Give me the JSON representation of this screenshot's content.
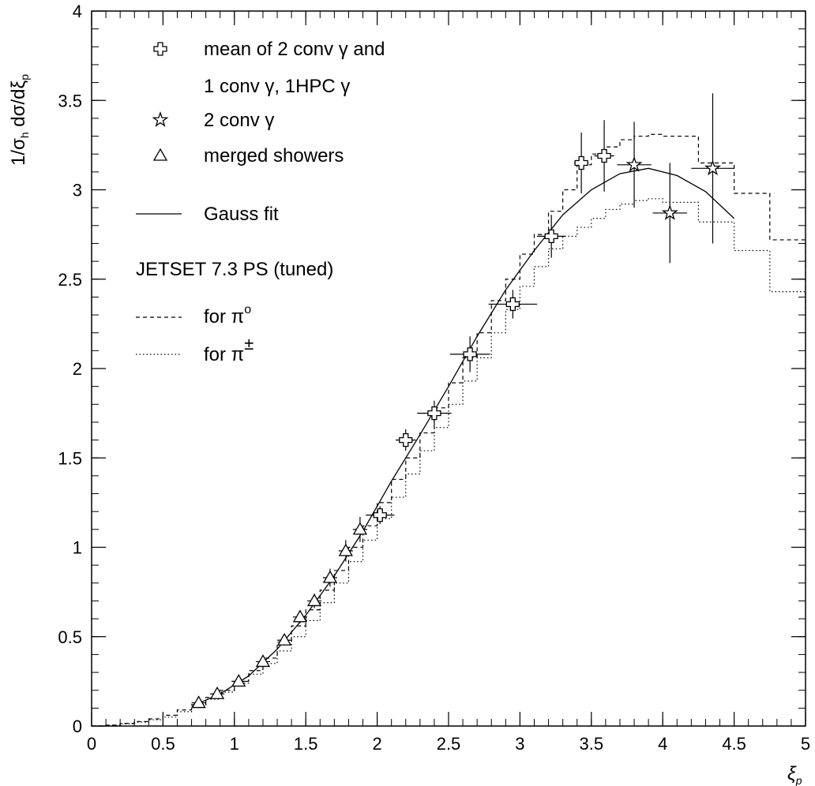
{
  "chart_data": {
    "type": "scatter",
    "title": "",
    "xlabel": "ξ",
    "xlabel_sub": "p",
    "ylabel": "1/σ",
    "ylabel_sub": "h",
    "ylabel_rest": " dσ/dξ",
    "ylabel_sub2": "p",
    "xlim": [
      0,
      5
    ],
    "ylim": [
      0,
      4
    ],
    "x_ticks": [
      {
        "value": 0,
        "label": "0"
      },
      {
        "value": 0.5,
        "label": "0.5"
      },
      {
        "value": 1,
        "label": "1"
      },
      {
        "value": 1.5,
        "label": "1.5"
      },
      {
        "value": 2,
        "label": "2"
      },
      {
        "value": 2.5,
        "label": "2.5"
      },
      {
        "value": 3,
        "label": "3"
      },
      {
        "value": 3.5,
        "label": "3.5"
      },
      {
        "value": 4,
        "label": "4"
      },
      {
        "value": 4.5,
        "label": "4.5"
      },
      {
        "value": 5,
        "label": "5"
      }
    ],
    "y_ticks": [
      {
        "value": 0,
        "label": "0"
      },
      {
        "value": 0.5,
        "label": "0.5"
      },
      {
        "value": 1,
        "label": "1"
      },
      {
        "value": 1.5,
        "label": "1.5"
      },
      {
        "value": 2,
        "label": "2"
      },
      {
        "value": 2.5,
        "label": "2.5"
      },
      {
        "value": 3,
        "label": "3"
      },
      {
        "value": 3.5,
        "label": "3.5"
      },
      {
        "value": 4,
        "label": "4"
      }
    ],
    "grid": false,
    "legend_position": "top-left",
    "legend": {
      "cross_line1": "mean of 2 conv γ and",
      "cross_line2": "1 conv γ, 1HPC γ",
      "star": "2 conv γ",
      "triangle": "merged showers",
      "fit": "Gauss fit",
      "jetset": "JETSET 7.3 PS (tuned)",
      "dashed_prefix": "for π",
      "dashed_sup": "o",
      "dotted_prefix": "for π",
      "dotted_sup": "±"
    },
    "series": [
      {
        "name": "mean of 2 conv γ and 1 conv γ, 1HPC γ",
        "marker": "cross",
        "points": [
          {
            "x": 2.02,
            "y": 1.18,
            "xerr": 0.1,
            "yerr": 0.05
          },
          {
            "x": 2.2,
            "y": 1.6,
            "xerr": 0.07,
            "yerr": 0.06
          },
          {
            "x": 2.4,
            "y": 1.75,
            "xerr": 0.12,
            "yerr": 0.07
          },
          {
            "x": 2.65,
            "y": 2.08,
            "xerr": 0.14,
            "yerr": 0.1
          },
          {
            "x": 2.95,
            "y": 2.36,
            "xerr": 0.17,
            "yerr": 0.08
          },
          {
            "x": 3.22,
            "y": 2.74,
            "xerr": 0.1,
            "yerr": 0.12
          },
          {
            "x": 3.43,
            "y": 3.15,
            "xerr": 0.05,
            "yerr": 0.17
          },
          {
            "x": 3.59,
            "y": 3.19,
            "xerr": 0.07,
            "yerr": 0.2
          }
        ]
      },
      {
        "name": "2 conv γ",
        "marker": "star",
        "points": [
          {
            "x": 3.8,
            "y": 3.14,
            "xerr": 0.12,
            "yerr": 0.24
          },
          {
            "x": 4.05,
            "y": 2.87,
            "xerr": 0.12,
            "yerr": 0.28
          },
          {
            "x": 4.35,
            "y": 3.12,
            "xerr": 0.15,
            "yerr": 0.42
          }
        ]
      },
      {
        "name": "merged showers",
        "marker": "triangle",
        "points": [
          {
            "x": 0.75,
            "y": 0.13,
            "xerr": 0.05,
            "yerr": 0.015
          },
          {
            "x": 0.88,
            "y": 0.18,
            "xerr": 0.05,
            "yerr": 0.02
          },
          {
            "x": 1.03,
            "y": 0.25,
            "xerr": 0.05,
            "yerr": 0.025
          },
          {
            "x": 1.2,
            "y": 0.36,
            "xerr": 0.05,
            "yerr": 0.03
          },
          {
            "x": 1.35,
            "y": 0.48,
            "xerr": 0.05,
            "yerr": 0.03
          },
          {
            "x": 1.46,
            "y": 0.61,
            "xerr": 0.05,
            "yerr": 0.035
          },
          {
            "x": 1.56,
            "y": 0.7,
            "xerr": 0.05,
            "yerr": 0.04
          },
          {
            "x": 1.67,
            "y": 0.83,
            "xerr": 0.05,
            "yerr": 0.05
          },
          {
            "x": 1.78,
            "y": 0.98,
            "xerr": 0.05,
            "yerr": 0.06
          },
          {
            "x": 1.88,
            "y": 1.1,
            "xerr": 0.05,
            "yerr": 0.07
          }
        ]
      },
      {
        "name": "Gauss fit",
        "type": "line",
        "style": "solid",
        "points": [
          [
            0.7,
            0.11
          ],
          [
            0.9,
            0.18
          ],
          [
            1.1,
            0.28
          ],
          [
            1.3,
            0.43
          ],
          [
            1.5,
            0.62
          ],
          [
            1.7,
            0.84
          ],
          [
            1.9,
            1.09
          ],
          [
            2.1,
            1.37
          ],
          [
            2.3,
            1.63
          ],
          [
            2.5,
            1.9
          ],
          [
            2.7,
            2.18
          ],
          [
            2.9,
            2.44
          ],
          [
            3.1,
            2.66
          ],
          [
            3.3,
            2.86
          ],
          [
            3.5,
            3.0
          ],
          [
            3.7,
            3.09
          ],
          [
            3.9,
            3.12
          ],
          [
            4.1,
            3.08
          ],
          [
            4.3,
            2.99
          ],
          [
            4.5,
            2.84
          ]
        ]
      },
      {
        "name": "for π o",
        "type": "step",
        "style": "dashed",
        "edges": [
          0.0,
          0.1,
          0.2,
          0.3,
          0.4,
          0.5,
          0.6,
          0.7,
          0.8,
          0.9,
          1.0,
          1.1,
          1.2,
          1.3,
          1.4,
          1.5,
          1.6,
          1.7,
          1.8,
          1.9,
          2.0,
          2.1,
          2.2,
          2.3,
          2.4,
          2.5,
          2.6,
          2.7,
          2.8,
          2.9,
          3.0,
          3.1,
          3.2,
          3.3,
          3.4,
          3.5,
          3.6,
          3.7,
          3.8,
          3.9,
          4.0,
          4.25,
          4.5,
          4.75,
          5.0
        ],
        "values": [
          0.0,
          0.005,
          0.015,
          0.025,
          0.04,
          0.06,
          0.09,
          0.12,
          0.16,
          0.2,
          0.25,
          0.31,
          0.38,
          0.47,
          0.56,
          0.65,
          0.76,
          0.87,
          1.0,
          1.12,
          1.25,
          1.38,
          1.5,
          1.64,
          1.78,
          1.92,
          2.06,
          2.2,
          2.38,
          2.5,
          2.64,
          2.75,
          2.88,
          3.0,
          3.14,
          3.2,
          3.24,
          3.28,
          3.3,
          3.31,
          3.3,
          3.15,
          2.98,
          2.72,
          2.3
        ]
      },
      {
        "name": "for π ±",
        "type": "step",
        "style": "dotted",
        "edges": [
          0.0,
          0.1,
          0.2,
          0.3,
          0.4,
          0.5,
          0.6,
          0.7,
          0.8,
          0.9,
          1.0,
          1.1,
          1.2,
          1.3,
          1.4,
          1.5,
          1.6,
          1.7,
          1.8,
          1.9,
          2.0,
          2.1,
          2.2,
          2.3,
          2.4,
          2.5,
          2.6,
          2.7,
          2.8,
          2.9,
          3.0,
          3.1,
          3.2,
          3.3,
          3.4,
          3.5,
          3.6,
          3.7,
          3.8,
          3.9,
          4.0,
          4.25,
          4.5,
          4.75,
          5.0
        ],
        "values": [
          0.0,
          0.004,
          0.012,
          0.022,
          0.035,
          0.05,
          0.08,
          0.11,
          0.15,
          0.19,
          0.24,
          0.29,
          0.35,
          0.42,
          0.5,
          0.59,
          0.69,
          0.8,
          0.92,
          1.04,
          1.16,
          1.28,
          1.41,
          1.54,
          1.67,
          1.8,
          1.93,
          2.06,
          2.2,
          2.33,
          2.46,
          2.57,
          2.67,
          2.74,
          2.79,
          2.84,
          2.89,
          2.92,
          2.94,
          2.95,
          2.93,
          2.82,
          2.66,
          2.43,
          2.03
        ]
      }
    ]
  }
}
